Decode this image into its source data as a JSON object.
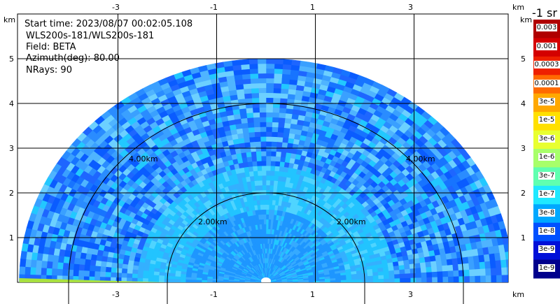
{
  "info": {
    "start_time": "Start time: 2023/08/07 00:02:05.108",
    "device": "WLS200s-181/WLS200s-181",
    "field": "Field: BETA",
    "azimuth": "Azimuth(deg): 80.00",
    "nrays": "NRays: 90"
  },
  "axes": {
    "unit": "km",
    "x_ticks": [
      "-3",
      "-1",
      "1",
      "3"
    ],
    "y_ticks": [
      "1",
      "2",
      "3",
      "4",
      "5"
    ]
  },
  "range_rings": [
    "2.00km",
    "2.00km",
    "4.00km",
    "4.00km"
  ],
  "colorbar": {
    "unit": "-1 sr",
    "labels": [
      "0.003",
      "0.001",
      "0.0003",
      "0.0001",
      "3e-5",
      "1e-5",
      "3e-6",
      "1e-6",
      "3e-7",
      "1e-7",
      "3e-8",
      "1e-8",
      "3e-9",
      "1e-9"
    ],
    "colors": [
      "#b00000",
      "#d40000",
      "#ee2000",
      "#ff6a00",
      "#ffa800",
      "#ffe000",
      "#e8ff30",
      "#a8ff6a",
      "#60ffb0",
      "#20e8ff",
      "#00a8ff",
      "#0050ff",
      "#0010d8",
      "#00008c"
    ]
  },
  "chart_data": {
    "type": "heatmap",
    "title": "",
    "xlabel": "km",
    "ylabel": "km",
    "xlim": [
      -5.0,
      5.0
    ],
    "ylim": [
      0,
      5.5
    ],
    "max_range_km": 5.0,
    "sector_deg": [
      0,
      180
    ],
    "dominant_level": "1e-7 to 1e-8",
    "near_field_level": "3e-7",
    "range_ring_km": [
      2,
      4
    ]
  }
}
